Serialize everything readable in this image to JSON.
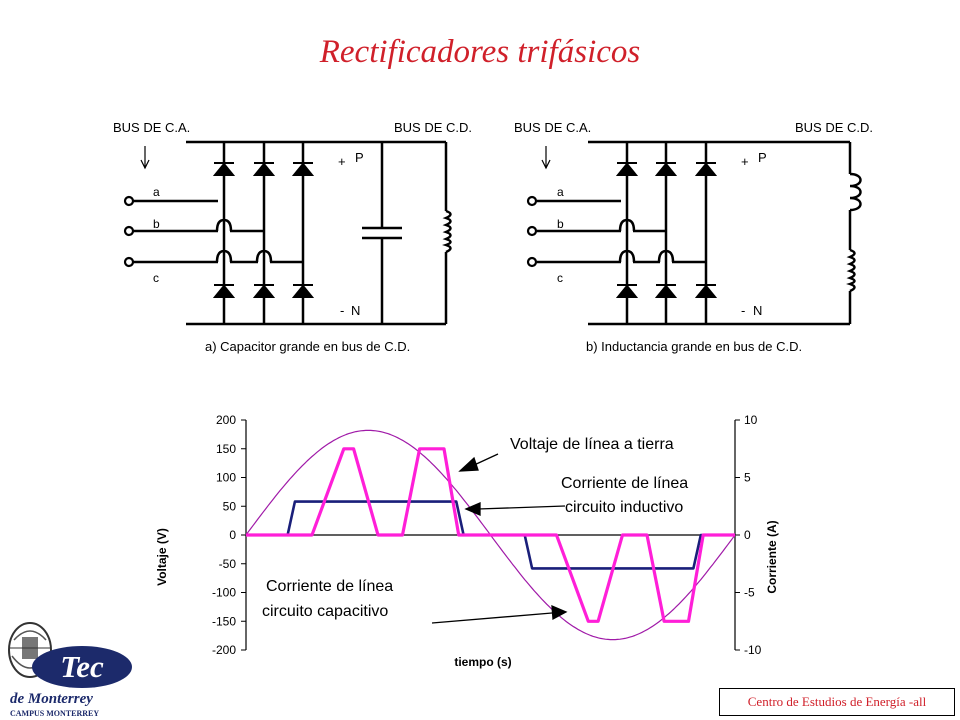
{
  "title": "Rectificadores trifásicos",
  "circuit_a": {
    "ac_bus": "BUS DE C.A.",
    "dc_bus": "BUS DE C.D.",
    "phases": [
      "a",
      "b",
      "c"
    ],
    "pos_sign": "+",
    "pos_label": "P",
    "neg_sign": "-",
    "neg_label": "N",
    "caption": "a) Capacitor grande en bus de C.D."
  },
  "circuit_b": {
    "ac_bus": "BUS DE C.A.",
    "dc_bus": "BUS DE C.D.",
    "phases": [
      "a",
      "b",
      "c"
    ],
    "pos_sign": "+",
    "pos_label": "P",
    "neg_sign": "-",
    "neg_label": "N",
    "caption": "b) Inductancia grande en bus de C.D."
  },
  "annotations": {
    "voltage": "Voltaje de línea a tierra",
    "inductive_line1": "Corriente de línea",
    "inductive_line2": "circuito inductivo",
    "capacitive_line1": "Corriente de línea",
    "capacitive_line2": "circuito capacitivo"
  },
  "chart_data": {
    "type": "line",
    "xlabel": "tiempo (s)",
    "ylabel": "Voltaje (V)",
    "y2label": "Corriente (A)",
    "ylim": [
      -200,
      200
    ],
    "y2lim": [
      -10,
      10
    ],
    "yticks": [
      "200",
      "150",
      "100",
      "50",
      "0",
      "-50",
      "-100",
      "-150",
      "-200"
    ],
    "y2ticks": [
      "10",
      "5",
      "0",
      "-5",
      "-10"
    ],
    "series": [
      {
        "name": "Voltaje de línea a tierra",
        "axis": "left",
        "color": "#a01aa8",
        "x": [
          0,
          0.05,
          0.1,
          0.15,
          0.2,
          0.25,
          0.3,
          0.35,
          0.4,
          0.45,
          0.5,
          0.55,
          0.6,
          0.65,
          0.7,
          0.75,
          0.8,
          0.85,
          0.9,
          0.95,
          1
        ],
        "y": [
          0,
          56,
          107,
          147,
          173,
          182,
          173,
          147,
          107,
          56,
          0,
          -56,
          -107,
          -147,
          -173,
          -182,
          -173,
          -147,
          -107,
          -56,
          0
        ]
      },
      {
        "name": "Corriente de línea circuito inductivo",
        "axis": "right",
        "color": "#1a1f7a",
        "x": [
          0,
          0.085,
          0.1,
          0.43,
          0.445,
          0.57,
          0.585,
          0.915,
          0.93,
          1
        ],
        "y": [
          0,
          0,
          2.9,
          2.9,
          0,
          0,
          -2.9,
          -2.9,
          0,
          0
        ]
      },
      {
        "name": "Corriente de línea circuito capacitivo",
        "axis": "right",
        "color": "#ff1fd8",
        "x": [
          0,
          0.135,
          0.2,
          0.22,
          0.27,
          0.29,
          0.32,
          0.355,
          0.39,
          0.405,
          0.435,
          0.46,
          0.49,
          0.635,
          0.7,
          0.72,
          0.77,
          0.79,
          0.82,
          0.855,
          0.89,
          0.905,
          0.935,
          0.96,
          0.99,
          1
        ],
        "y": [
          0,
          0,
          7.5,
          7.5,
          0,
          0,
          0,
          7.5,
          7.5,
          7.5,
          0,
          0,
          0,
          0,
          -7.5,
          -7.5,
          0,
          0,
          0,
          -7.5,
          -7.5,
          -7.5,
          0,
          0,
          0,
          0
        ]
      }
    ]
  },
  "logo": {
    "name": "Tec",
    "sub": "de Monterrey",
    "campus": "CAMPUS MONTERREY"
  },
  "footer": "Centro de Estudios de Energía -all"
}
